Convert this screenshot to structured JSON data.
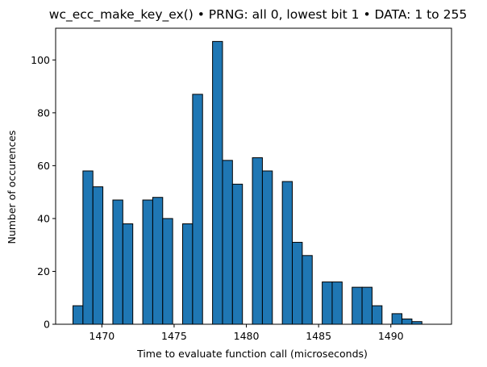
{
  "chart_data": {
    "type": "bar",
    "title": "wc_ecc_make_key_ex() • PRNG: all 0, lowest bit 1 • DATA: 1 to 255",
    "xlabel": "Time to evaluate function call (microseconds)",
    "ylabel": "Number of occurences",
    "xlim": [
      1466.8,
      1494.2
    ],
    "ylim": [
      0,
      112
    ],
    "xticks": [
      1470,
      1475,
      1480,
      1485,
      1490
    ],
    "yticks": [
      0,
      20,
      40,
      60,
      80,
      100
    ],
    "bin_width": 0.69,
    "bins": [
      {
        "x": 1468.0,
        "value": 7
      },
      {
        "x": 1468.69,
        "value": 58
      },
      {
        "x": 1469.38,
        "value": 52
      },
      {
        "x": 1470.76,
        "value": 47
      },
      {
        "x": 1471.45,
        "value": 38
      },
      {
        "x": 1472.83,
        "value": 47
      },
      {
        "x": 1473.52,
        "value": 48
      },
      {
        "x": 1474.21,
        "value": 40
      },
      {
        "x": 1475.59,
        "value": 38
      },
      {
        "x": 1476.28,
        "value": 87
      },
      {
        "x": 1477.66,
        "value": 107
      },
      {
        "x": 1478.35,
        "value": 62
      },
      {
        "x": 1479.04,
        "value": 53
      },
      {
        "x": 1480.42,
        "value": 63
      },
      {
        "x": 1481.11,
        "value": 58
      },
      {
        "x": 1482.49,
        "value": 54
      },
      {
        "x": 1483.18,
        "value": 31
      },
      {
        "x": 1483.87,
        "value": 26
      },
      {
        "x": 1485.25,
        "value": 16
      },
      {
        "x": 1485.94,
        "value": 16
      },
      {
        "x": 1487.32,
        "value": 14
      },
      {
        "x": 1488.01,
        "value": 14
      },
      {
        "x": 1488.7,
        "value": 7
      },
      {
        "x": 1490.08,
        "value": 4
      },
      {
        "x": 1490.77,
        "value": 2
      },
      {
        "x": 1491.46,
        "value": 1
      }
    ],
    "bar_color": "#1f77b4",
    "edge_color": "#000000",
    "grid": false
  }
}
